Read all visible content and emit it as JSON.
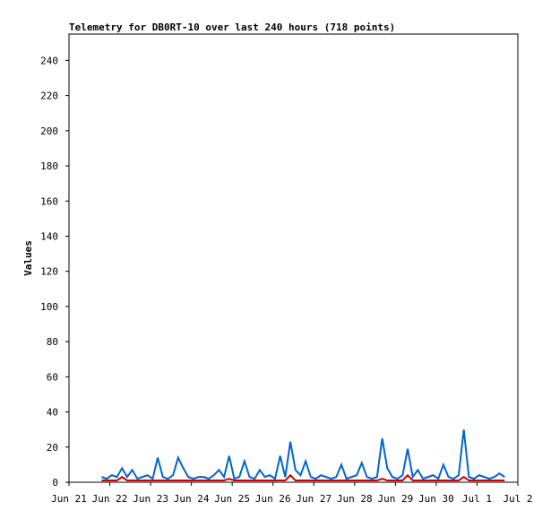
{
  "chart_data": {
    "type": "line",
    "title": "Telemetry for DB0RT-10 over last 240 hours (718 points)",
    "y_label": "Values",
    "ylim": [
      0,
      255
    ],
    "yticks": [
      0,
      20,
      40,
      60,
      80,
      100,
      120,
      140,
      160,
      180,
      200,
      220,
      240
    ],
    "xlim": [
      0,
      11
    ],
    "xticks": [
      {
        "value": 0,
        "label": "Jun 21"
      },
      {
        "value": 1,
        "label": "Jun 22"
      },
      {
        "value": 2,
        "label": "Jun 23"
      },
      {
        "value": 3,
        "label": "Jun 24"
      },
      {
        "value": 4,
        "label": "Jun 25"
      },
      {
        "value": 5,
        "label": "Jun 26"
      },
      {
        "value": 6,
        "label": "Jun 27"
      },
      {
        "value": 7,
        "label": "Jun 28"
      },
      {
        "value": 8,
        "label": "Jun 29"
      },
      {
        "value": 9,
        "label": "Jun 30"
      },
      {
        "value": 10,
        "label": "Jul 1"
      },
      {
        "value": 11,
        "label": "Jul 2"
      }
    ],
    "grid": false,
    "x": [
      0.8,
      0.925,
      1.05,
      1.175,
      1.3,
      1.425,
      1.55,
      1.675,
      1.8,
      1.925,
      2.05,
      2.175,
      2.3,
      2.425,
      2.55,
      2.675,
      2.8,
      2.925,
      3.05,
      3.175,
      3.3,
      3.425,
      3.55,
      3.675,
      3.8,
      3.925,
      4.05,
      4.175,
      4.3,
      4.425,
      4.55,
      4.675,
      4.8,
      4.925,
      5.05,
      5.175,
      5.3,
      5.425,
      5.55,
      5.675,
      5.8,
      5.925,
      6.05,
      6.175,
      6.3,
      6.425,
      6.55,
      6.675,
      6.8,
      6.925,
      7.05,
      7.175,
      7.3,
      7.425,
      7.55,
      7.675,
      7.8,
      7.925,
      8.05,
      8.175,
      8.3,
      8.425,
      8.55,
      8.675,
      8.8,
      8.925,
      9.05,
      9.175,
      9.3,
      9.425,
      9.55,
      9.675,
      9.8,
      9.925,
      10.05,
      10.175,
      10.3,
      10.425,
      10.55,
      10.675
    ],
    "series": [
      {
        "color": "#0066cc",
        "values": [
          3,
          2,
          4,
          3,
          8,
          3,
          7,
          2,
          3,
          4,
          2,
          14,
          3,
          2,
          4,
          14,
          8,
          3,
          2,
          3,
          3,
          2,
          4,
          7,
          3,
          15,
          2,
          3,
          12,
          3,
          2,
          7,
          3,
          4,
          2,
          15,
          3,
          23,
          7,
          4,
          12,
          3,
          2,
          4,
          3,
          2,
          3,
          10,
          2,
          3,
          4,
          11,
          3,
          2,
          3,
          25,
          8,
          3,
          2,
          4,
          19,
          3,
          7,
          2,
          3,
          4,
          2,
          10,
          3,
          2,
          4,
          30,
          3,
          2,
          4,
          3,
          2,
          3,
          5,
          3
        ]
      },
      {
        "color": "#cc0000",
        "values": [
          1,
          1,
          1,
          1,
          3,
          1,
          1,
          1,
          1,
          1,
          1,
          1,
          1,
          1,
          1,
          1,
          1,
          1,
          1,
          1,
          1,
          1,
          1,
          1,
          1,
          2,
          1,
          1,
          1,
          1,
          1,
          1,
          1,
          1,
          1,
          1,
          1,
          4,
          1,
          1,
          1,
          1,
          1,
          1,
          1,
          1,
          1,
          1,
          1,
          1,
          1,
          1,
          1,
          1,
          1,
          2,
          1,
          1,
          1,
          1,
          4,
          1,
          1,
          1,
          1,
          1,
          1,
          1,
          1,
          1,
          1,
          3,
          1,
          1,
          1,
          1,
          1,
          1,
          1,
          1
        ]
      }
    ]
  }
}
